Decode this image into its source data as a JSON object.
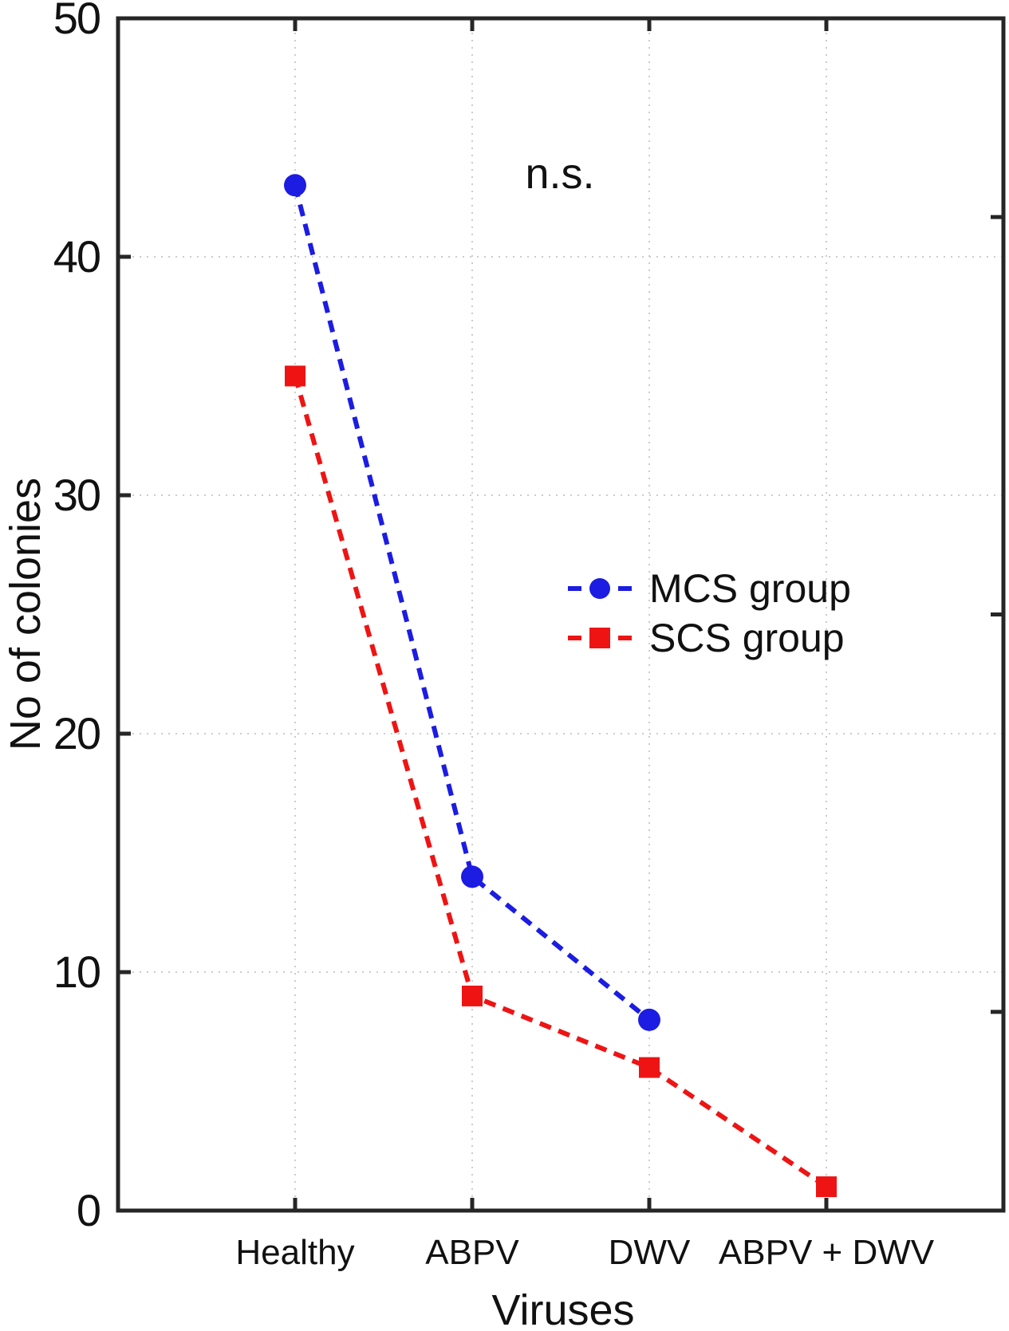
{
  "chart_data": {
    "type": "line",
    "title": "",
    "annotation": "n.s.",
    "xlabel": "Viruses",
    "ylabel": "No of colonies",
    "categories": [
      "Healthy",
      "ABPV",
      "DWV",
      "ABPV + DWV"
    ],
    "ylim": [
      0,
      50
    ],
    "yticks": [
      0,
      10,
      20,
      30,
      40,
      50
    ],
    "grid": "dotted light-gray horizontal and vertical",
    "legend_position": "center-right inside plot, no frame",
    "series": [
      {
        "name": "MCS group",
        "marker": "circle",
        "line_style": "dashed",
        "color": "#1c1ce2",
        "values": [
          43,
          14,
          8,
          null
        ]
      },
      {
        "name": "SCS group",
        "marker": "square",
        "line_style": "dashed",
        "color": "#ee1414",
        "values": [
          35,
          9,
          6,
          1
        ]
      }
    ],
    "colors": {
      "axis": "#262626",
      "grid": "#cccccc",
      "text": "#111111",
      "background": "#ffffff"
    }
  }
}
